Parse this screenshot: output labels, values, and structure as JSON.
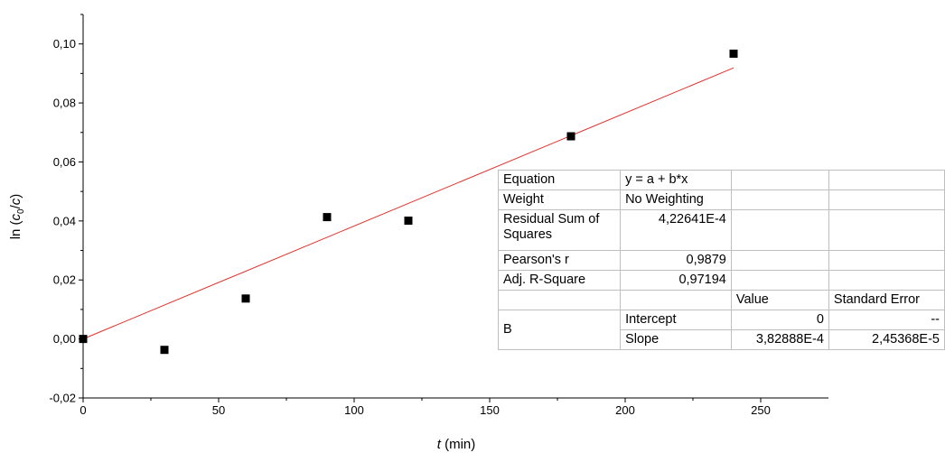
{
  "chart_data": {
    "type": "scatter",
    "xlabel": {
      "italic": "t",
      "rest": " (min)"
    },
    "ylabel": {
      "pre": "ln (",
      "c": "c",
      "sub": "0",
      "slash": "/",
      "c2": "c",
      "post": ")"
    },
    "xlim": [
      0,
      275
    ],
    "ylim": [
      -0.02,
      0.11
    ],
    "x_ticks": [
      0,
      50,
      100,
      150,
      200,
      250
    ],
    "x_tick_labels": [
      "0",
      "50",
      "100",
      "150",
      "200",
      "250"
    ],
    "y_ticks": [
      -0.02,
      0.0,
      0.02,
      0.04,
      0.06,
      0.08,
      0.1
    ],
    "y_tick_labels": [
      "-0,02",
      "0,00",
      "0,02",
      "0,04",
      "0,06",
      "0,08",
      "0,10"
    ],
    "grid": false,
    "series": [
      {
        "marker": "square",
        "color": "#000000",
        "x": [
          0,
          30,
          60,
          90,
          120,
          180,
          240
        ],
        "y": [
          0.0,
          -0.0037,
          0.0137,
          0.0413,
          0.0401,
          0.0687,
          0.0967
        ]
      }
    ],
    "fit_line": {
      "color": "#e0302a",
      "intercept": 0,
      "slope": 0.000382888,
      "x_range": [
        0,
        240
      ]
    }
  },
  "fit_table": {
    "rows": [
      [
        "Equation",
        "y = a + b*x",
        "",
        ""
      ],
      [
        "Weight",
        "No Weighting",
        "",
        ""
      ],
      [
        "Residual Sum of Squares",
        "4,22641E-4",
        "",
        ""
      ],
      [
        "Pearson's r",
        "0,9879",
        "",
        ""
      ],
      [
        "Adj. R-Square",
        "0,97194",
        "",
        ""
      ]
    ],
    "header": [
      "",
      "",
      "Value",
      "Standard Error"
    ],
    "param_group": "B",
    "params": [
      [
        "Intercept",
        "0",
        "--"
      ],
      [
        "Slope",
        "3,82888E-4",
        "2,45368E-5"
      ]
    ]
  }
}
